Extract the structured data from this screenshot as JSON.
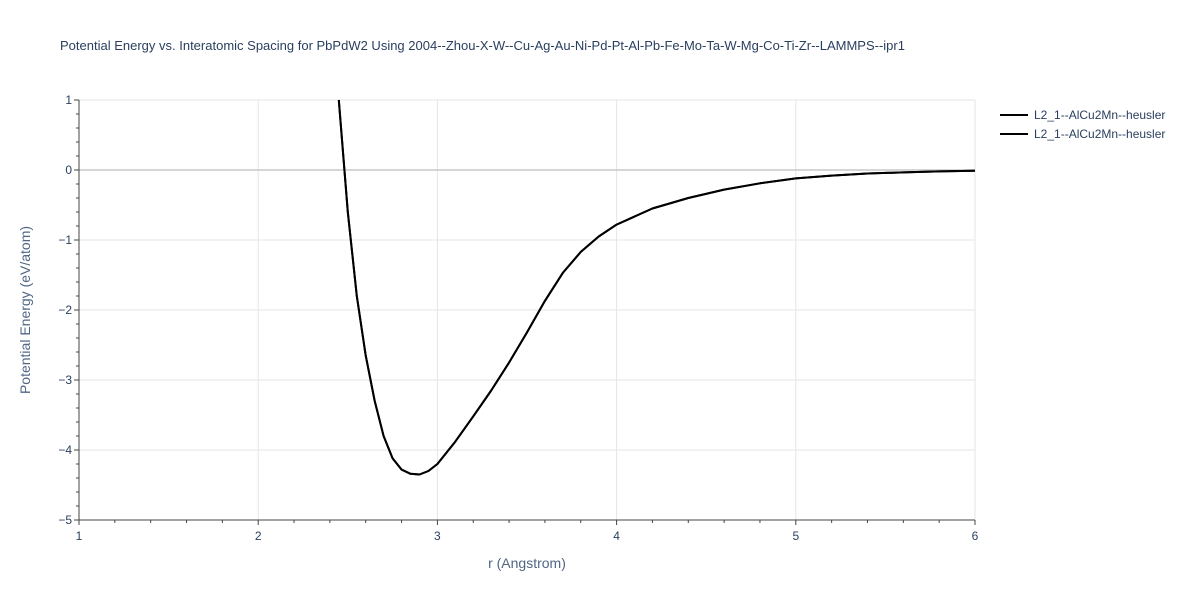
{
  "chart_data": {
    "type": "line",
    "title": "Potential Energy vs. Interatomic Spacing for PbPdW2 Using 2004--Zhou-X-W--Cu-Ag-Au-Ni-Pd-Pt-Al-Pb-Fe-Mo-Ta-W-Mg-Co-Ti-Zr--LAMMPS--ipr1",
    "xlabel": "r (Angstrom)",
    "ylabel": "Potential Energy (eV/atom)",
    "xlim": [
      1,
      6
    ],
    "ylim": [
      -5,
      1
    ],
    "x_ticks": [
      1,
      2,
      3,
      4,
      5,
      6
    ],
    "y_ticks": [
      1,
      0,
      -1,
      -2,
      -3,
      -4,
      -5
    ],
    "x_tick_labels": [
      "1",
      "2",
      "3",
      "4",
      "5",
      "6"
    ],
    "y_tick_labels": [
      "1",
      "0",
      "−1",
      "−2",
      "−3",
      "−4",
      "−5"
    ],
    "grid": true,
    "legend_position": "top-right",
    "series": [
      {
        "name": "L2_1--AlCu2Mn--heusler",
        "color": "#000000",
        "x": [
          2.45,
          2.5,
          2.55,
          2.6,
          2.65,
          2.7,
          2.75,
          2.8,
          2.85,
          2.9,
          2.95,
          3.0,
          3.1,
          3.2,
          3.3,
          3.4,
          3.5,
          3.6,
          3.7,
          3.8,
          3.9,
          4.0,
          4.2,
          4.4,
          4.6,
          4.8,
          5.0,
          5.2,
          5.4,
          5.6,
          5.8,
          6.0
        ],
        "y": [
          1.0,
          -0.6,
          -1.8,
          -2.65,
          -3.3,
          -3.8,
          -4.12,
          -4.28,
          -4.34,
          -4.35,
          -4.3,
          -4.2,
          -3.88,
          -3.52,
          -3.15,
          -2.75,
          -2.32,
          -1.87,
          -1.47,
          -1.17,
          -0.95,
          -0.78,
          -0.55,
          -0.4,
          -0.28,
          -0.19,
          -0.12,
          -0.08,
          -0.05,
          -0.035,
          -0.02,
          -0.01
        ]
      },
      {
        "name": "L2_1--AlCu2Mn--heusler",
        "color": "#000000",
        "x": [
          2.45,
          2.5,
          2.55,
          2.6,
          2.65,
          2.7,
          2.75,
          2.8,
          2.85,
          2.9,
          2.95,
          3.0,
          3.1,
          3.2,
          3.3,
          3.4,
          3.5,
          3.6,
          3.7,
          3.8,
          3.9,
          4.0,
          4.2,
          4.4,
          4.6,
          4.8,
          5.0,
          5.2,
          5.4,
          5.6,
          5.8,
          6.0
        ],
        "y": [
          1.0,
          -0.6,
          -1.8,
          -2.65,
          -3.3,
          -3.8,
          -4.12,
          -4.28,
          -4.34,
          -4.35,
          -4.3,
          -4.2,
          -3.88,
          -3.52,
          -3.15,
          -2.75,
          -2.32,
          -1.87,
          -1.47,
          -1.17,
          -0.95,
          -0.78,
          -0.55,
          -0.4,
          -0.28,
          -0.19,
          -0.12,
          -0.08,
          -0.05,
          -0.035,
          -0.02,
          -0.01
        ]
      }
    ]
  }
}
